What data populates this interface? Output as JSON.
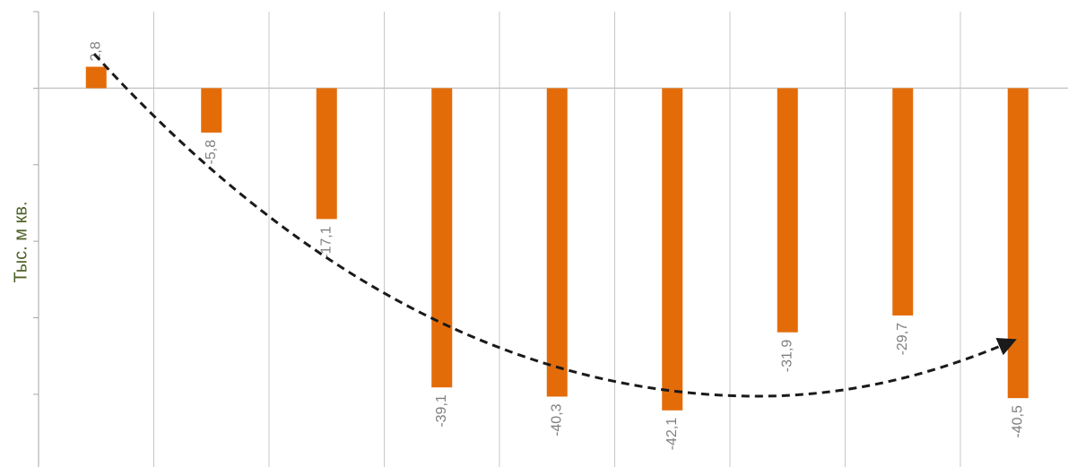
{
  "chart_data": {
    "type": "bar",
    "y_axis_label": "Тыс. м кв.",
    "categories": [
      null,
      null,
      null,
      null,
      null,
      null,
      null,
      null,
      null
    ],
    "values": [
      2.8,
      -5.8,
      -17.1,
      -39.1,
      -40.3,
      -42.1,
      -31.9,
      -29.7,
      -40.5
    ],
    "value_labels": [
      "2,8",
      "-5,8",
      "-17,1",
      "-39,1",
      "-40,3",
      "-42,1",
      "-31,9",
      "-29,7",
      "-40,5"
    ],
    "color": "#e36c09",
    "ylim": [
      -49.5,
      10
    ],
    "yticks": [
      10,
      0,
      -10,
      -20,
      -30,
      -40
    ],
    "grid": true
  }
}
